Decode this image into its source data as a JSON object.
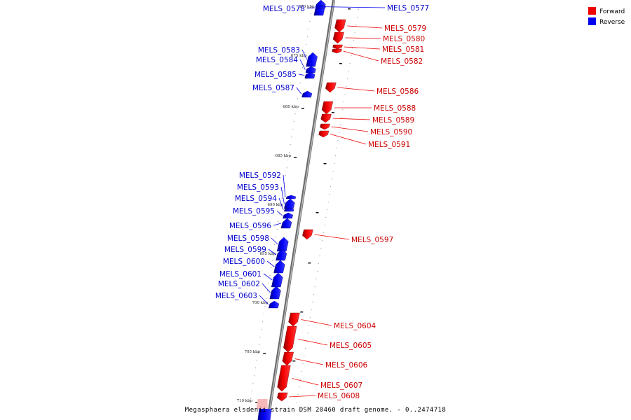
{
  "colors": {
    "forward": "#ee0000",
    "reverse": "#0000ee",
    "backbone": "#888888"
  },
  "legend": [
    {
      "label": "Forward",
      "color": "#ee0000"
    },
    {
      "label": "Reverse",
      "color": "#0000ee"
    }
  ],
  "caption": "Megasphaera elsdenii strain DSM 20460 draft genome. - 0..2474718",
  "ticks": [
    "670 kbp",
    "675 kbp",
    "680 kbp",
    "685 kbp",
    "690 kbp",
    "695 kbp",
    "700 kbp",
    "705 kbp",
    "710 kbp"
  ],
  "genes": [
    {
      "name": "MELS_0578",
      "strand": "reverse"
    },
    {
      "name": "MELS_0577",
      "strand": "reverse"
    },
    {
      "name": "MELS_0579",
      "strand": "forward"
    },
    {
      "name": "MELS_0580",
      "strand": "forward"
    },
    {
      "name": "MELS_0581",
      "strand": "forward"
    },
    {
      "name": "MELS_0582",
      "strand": "forward"
    },
    {
      "name": "MELS_0583",
      "strand": "reverse"
    },
    {
      "name": "MELS_0584",
      "strand": "reverse"
    },
    {
      "name": "MELS_0585",
      "strand": "reverse"
    },
    {
      "name": "MELS_0586",
      "strand": "forward"
    },
    {
      "name": "MELS_0587",
      "strand": "reverse"
    },
    {
      "name": "MELS_0588",
      "strand": "forward"
    },
    {
      "name": "MELS_0589",
      "strand": "forward"
    },
    {
      "name": "MELS_0590",
      "strand": "forward"
    },
    {
      "name": "MELS_0591",
      "strand": "forward"
    },
    {
      "name": "MELS_0592",
      "strand": "reverse"
    },
    {
      "name": "MELS_0593",
      "strand": "reverse"
    },
    {
      "name": "MELS_0594",
      "strand": "reverse"
    },
    {
      "name": "MELS_0595",
      "strand": "reverse"
    },
    {
      "name": "MELS_0596",
      "strand": "reverse"
    },
    {
      "name": "MELS_0597",
      "strand": "forward"
    },
    {
      "name": "MELS_0598",
      "strand": "reverse"
    },
    {
      "name": "MELS_0599",
      "strand": "reverse"
    },
    {
      "name": "MELS_0600",
      "strand": "reverse"
    },
    {
      "name": "MELS_0601",
      "strand": "reverse"
    },
    {
      "name": "MELS_0602",
      "strand": "reverse"
    },
    {
      "name": "MELS_0603",
      "strand": "reverse"
    },
    {
      "name": "MELS_0604",
      "strand": "forward"
    },
    {
      "name": "MELS_0605",
      "strand": "forward"
    },
    {
      "name": "MELS_0606",
      "strand": "forward"
    },
    {
      "name": "MELS_0607",
      "strand": "forward"
    },
    {
      "name": "MELS_0608",
      "strand": "forward"
    }
  ]
}
